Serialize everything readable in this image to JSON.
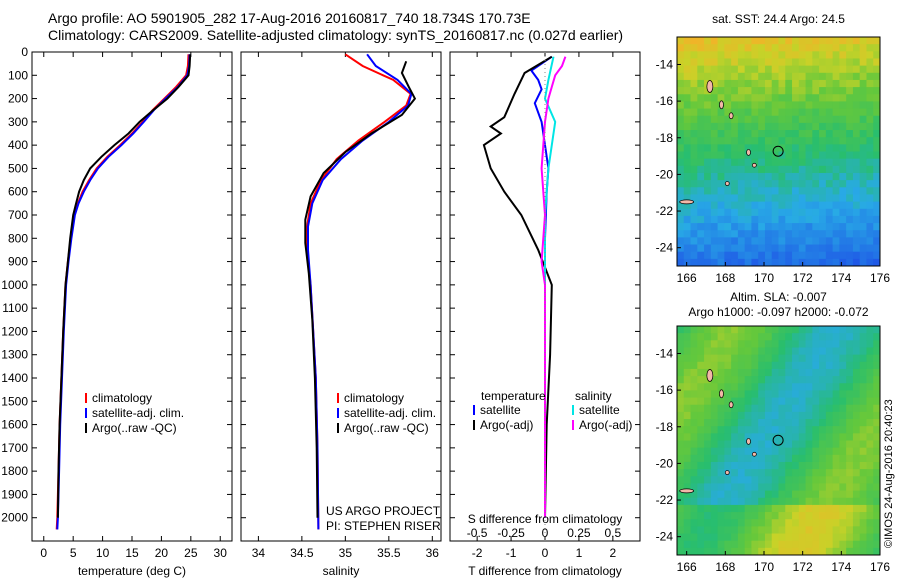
{
  "title": {
    "line1": "Argo profile: AO 5901905_282 17-Aug-2016 20160817_740 18.734S 170.73E",
    "line2": "Climatology: CARS2009. Satellite-adjusted climatology: synTS_20160817.nc (0.027d earlier)"
  },
  "colors": {
    "climatology": "#ff0000",
    "satellite": "#0000ff",
    "argo": "#000000",
    "satellite_salinity": "#00e5e5",
    "argo_salinity": "#ff00ff"
  },
  "credit": "©IMOS 24-Aug-2016 20:40:23",
  "chart_data": [
    {
      "type": "line",
      "xlabel": "temperature (deg C)",
      "ylabel": "",
      "xlim": [
        -2,
        32
      ],
      "ylim": [
        2100,
        0
      ],
      "xticks": [
        0,
        5,
        10,
        15,
        20,
        25,
        30
      ],
      "yticks": [
        0,
        100,
        200,
        300,
        400,
        500,
        600,
        700,
        800,
        900,
        1000,
        1100,
        1200,
        1300,
        1400,
        1500,
        1600,
        1700,
        1800,
        1900,
        2000
      ],
      "legend": [
        "climatology",
        "satellite-adj. clim.",
        "Argo(..raw -QC)"
      ],
      "series": [
        {
          "name": "climatology",
          "color": "#ff0000",
          "points": [
            [
              24.6,
              10
            ],
            [
              24.5,
              60
            ],
            [
              24.2,
              100
            ],
            [
              22.5,
              150
            ],
            [
              20.5,
              200
            ],
            [
              18.5,
              250
            ],
            [
              16.8,
              300
            ],
            [
              15,
              350
            ],
            [
              13,
              400
            ],
            [
              10.8,
              450
            ],
            [
              9,
              500
            ],
            [
              7.7,
              550
            ],
            [
              6.6,
              600
            ],
            [
              5.8,
              650
            ],
            [
              5.2,
              700
            ],
            [
              4.6,
              800
            ],
            [
              4.1,
              900
            ],
            [
              3.7,
              1000
            ],
            [
              3.3,
              1200
            ],
            [
              3,
              1400
            ],
            [
              2.7,
              1600
            ],
            [
              2.5,
              1800
            ],
            [
              2.3,
              2000
            ],
            [
              2.2,
              2050
            ]
          ]
        },
        {
          "name": "satellite-adj. clim.",
          "color": "#0000ff",
          "points": [
            [
              24.8,
              10
            ],
            [
              24.7,
              60
            ],
            [
              24.4,
              100
            ],
            [
              22.8,
              150
            ],
            [
              20.7,
              200
            ],
            [
              18.7,
              250
            ],
            [
              17,
              300
            ],
            [
              15.2,
              350
            ],
            [
              13.2,
              400
            ],
            [
              11,
              450
            ],
            [
              9.2,
              500
            ],
            [
              7.9,
              550
            ],
            [
              6.8,
              600
            ],
            [
              5.9,
              650
            ],
            [
              5.3,
              700
            ],
            [
              4.7,
              800
            ],
            [
              4.2,
              900
            ],
            [
              3.8,
              1000
            ],
            [
              3.4,
              1200
            ],
            [
              3.1,
              1400
            ],
            [
              2.8,
              1600
            ],
            [
              2.6,
              1800
            ],
            [
              2.4,
              2000
            ],
            [
              2.3,
              2050
            ]
          ]
        },
        {
          "name": "Argo(..raw -QC)",
          "color": "#000000",
          "points": [
            [
              24.9,
              10
            ],
            [
              24.8,
              60
            ],
            [
              24.6,
              100
            ],
            [
              22.9,
              150
            ],
            [
              21,
              200
            ],
            [
              18.6,
              250
            ],
            [
              16.3,
              300
            ],
            [
              14.4,
              350
            ],
            [
              12,
              400
            ],
            [
              9.8,
              450
            ],
            [
              7.9,
              500
            ],
            [
              6.8,
              550
            ],
            [
              6,
              600
            ],
            [
              5.5,
              650
            ],
            [
              5,
              700
            ],
            [
              4.5,
              800
            ],
            [
              4.1,
              900
            ],
            [
              3.7,
              1000
            ],
            [
              3.3,
              1200
            ],
            [
              3,
              1400
            ],
            [
              2.7,
              1600
            ],
            [
              2.5,
              1800
            ],
            [
              2.4,
              2000
            ]
          ]
        }
      ]
    },
    {
      "type": "line",
      "xlabel": "salinity",
      "ylabel": "",
      "xlim": [
        33.8,
        36.1
      ],
      "ylim": [
        2100,
        0
      ],
      "xticks": [
        34,
        34.5,
        35,
        35.5,
        36
      ],
      "legend": [
        "climatology",
        "satellite-adj. clim.",
        "Argo(..raw -QC)"
      ],
      "annotations": [
        "US ARGO PROJECT",
        "PI: STEPHEN RISER"
      ],
      "series": [
        {
          "name": "climatology",
          "color": "#ff0000",
          "points": [
            [
              35,
              10
            ],
            [
              35.2,
              60
            ],
            [
              35.55,
              120
            ],
            [
              35.75,
              180
            ],
            [
              35.7,
              230
            ],
            [
              35.45,
              300
            ],
            [
              35.15,
              380
            ],
            [
              34.9,
              460
            ],
            [
              34.72,
              550
            ],
            [
              34.6,
              650
            ],
            [
              34.56,
              750
            ],
            [
              34.56,
              850
            ],
            [
              34.6,
              1000
            ],
            [
              34.63,
              1200
            ],
            [
              34.66,
              1400
            ],
            [
              34.68,
              1700
            ],
            [
              34.69,
              2050
            ]
          ]
        },
        {
          "name": "satellite-adj. clim.",
          "color": "#0000ff",
          "points": [
            [
              35.25,
              10
            ],
            [
              35.35,
              60
            ],
            [
              35.6,
              120
            ],
            [
              35.76,
              180
            ],
            [
              35.72,
              230
            ],
            [
              35.5,
              300
            ],
            [
              35.2,
              380
            ],
            [
              34.95,
              460
            ],
            [
              34.74,
              550
            ],
            [
              34.62,
              650
            ],
            [
              34.57,
              750
            ],
            [
              34.57,
              850
            ],
            [
              34.6,
              1000
            ],
            [
              34.63,
              1200
            ],
            [
              34.66,
              1400
            ],
            [
              34.68,
              1700
            ],
            [
              34.69,
              2050
            ]
          ]
        },
        {
          "name": "Argo(..raw -QC)",
          "color": "#000000",
          "points": [
            [
              35.7,
              40
            ],
            [
              35.65,
              90
            ],
            [
              35.73,
              150
            ],
            [
              35.8,
              200
            ],
            [
              35.65,
              270
            ],
            [
              35.3,
              350
            ],
            [
              35,
              430
            ],
            [
              34.75,
              520
            ],
            [
              34.6,
              620
            ],
            [
              34.54,
              720
            ],
            [
              34.54,
              820
            ],
            [
              34.58,
              950
            ],
            [
              34.62,
              1150
            ],
            [
              34.65,
              1400
            ],
            [
              34.67,
              1700
            ],
            [
              34.68,
              2000
            ]
          ]
        }
      ]
    },
    {
      "type": "line",
      "xlabel": "T difference from climatology",
      "xlabel_top": "S difference from climatology",
      "xlim": [
        -2.8,
        2.8
      ],
      "ylim": [
        2100,
        0
      ],
      "xticks": [
        -2,
        -1,
        0,
        1,
        2
      ],
      "xticks_top": [
        "-0.5",
        "-0.25",
        "0",
        "0.25",
        "0.5"
      ],
      "legend_temperature": {
        "title": "temperature",
        "entries": [
          "satellite",
          "Argo(-adj)"
        ]
      },
      "legend_salinity": {
        "title": "salinity",
        "entries": [
          "satellite",
          "Argo(-adj)"
        ]
      },
      "series": [
        {
          "name": "temperature satellite",
          "color": "#0000ff",
          "points": [
            [
              0.2,
              20
            ],
            [
              -0.4,
              80
            ],
            [
              -0.2,
              120
            ],
            [
              -0.1,
              160
            ],
            [
              -0.3,
              220
            ],
            [
              -0.1,
              300
            ],
            [
              0,
              400
            ],
            [
              0.1,
              500
            ],
            [
              0.05,
              600
            ],
            [
              0,
              800
            ],
            [
              0,
              1200
            ],
            [
              0,
              1600
            ],
            [
              0,
              2000
            ]
          ]
        },
        {
          "name": "temperature Argo(-adj)",
          "color": "#000000",
          "points": [
            [
              0.2,
              20
            ],
            [
              -0.6,
              90
            ],
            [
              -0.9,
              180
            ],
            [
              -1.2,
              280
            ],
            [
              -1.6,
              320
            ],
            [
              -1.3,
              350
            ],
            [
              -1.8,
              400
            ],
            [
              -1.6,
              500
            ],
            [
              -1.2,
              600
            ],
            [
              -0.7,
              700
            ],
            [
              -0.2,
              850
            ],
            [
              0.2,
              1000
            ],
            [
              0.15,
              1300
            ],
            [
              0.05,
              1600
            ],
            [
              0,
              2000
            ]
          ]
        },
        {
          "name": "salinity satellite",
          "color": "#00e5e5",
          "points": [
            [
              0.25,
              20
            ],
            [
              0.1,
              120
            ],
            [
              0,
              200
            ],
            [
              0.3,
              300
            ],
            [
              0.2,
              400
            ],
            [
              0.1,
              500
            ],
            [
              0,
              700
            ],
            [
              0,
              1000
            ],
            [
              0,
              1500
            ],
            [
              0,
              2000
            ]
          ]
        },
        {
          "name": "salinity Argo(-adj)",
          "color": "#ff00ff",
          "points": [
            [
              0.6,
              20
            ],
            [
              0.5,
              60
            ],
            [
              0.3,
              100
            ],
            [
              0.2,
              150
            ],
            [
              0.1,
              200
            ],
            [
              0,
              300
            ],
            [
              -0.05,
              400
            ],
            [
              -0.1,
              500
            ],
            [
              0,
              700
            ],
            [
              -0.1,
              900
            ],
            [
              0,
              1000
            ],
            [
              0,
              1500
            ],
            [
              0,
              2000
            ]
          ]
        }
      ]
    },
    {
      "type": "heatmap",
      "title": "sat. SST: 24.4  Argo: 24.5",
      "xlim": [
        165.5,
        176
      ],
      "ylim": [
        -25,
        -12.5
      ],
      "xticks": [
        166,
        168,
        170,
        172,
        174,
        176
      ],
      "yticks": [
        -14,
        -16,
        -18,
        -20,
        -22,
        -24
      ],
      "marker": {
        "lon": 170.73,
        "lat": -18.734
      }
    },
    {
      "type": "heatmap",
      "title": "Altim. SLA: -0.007",
      "subtitle": "Argo h1000: -0.097 h2000: -0.072",
      "xlim": [
        165.5,
        176
      ],
      "ylim": [
        -25,
        -12.5
      ],
      "xticks": [
        166,
        168,
        170,
        172,
        174,
        176
      ],
      "yticks": [
        -14,
        -16,
        -18,
        -20,
        -22,
        -24
      ],
      "marker": {
        "lon": 170.73,
        "lat": -18.734
      }
    }
  ]
}
